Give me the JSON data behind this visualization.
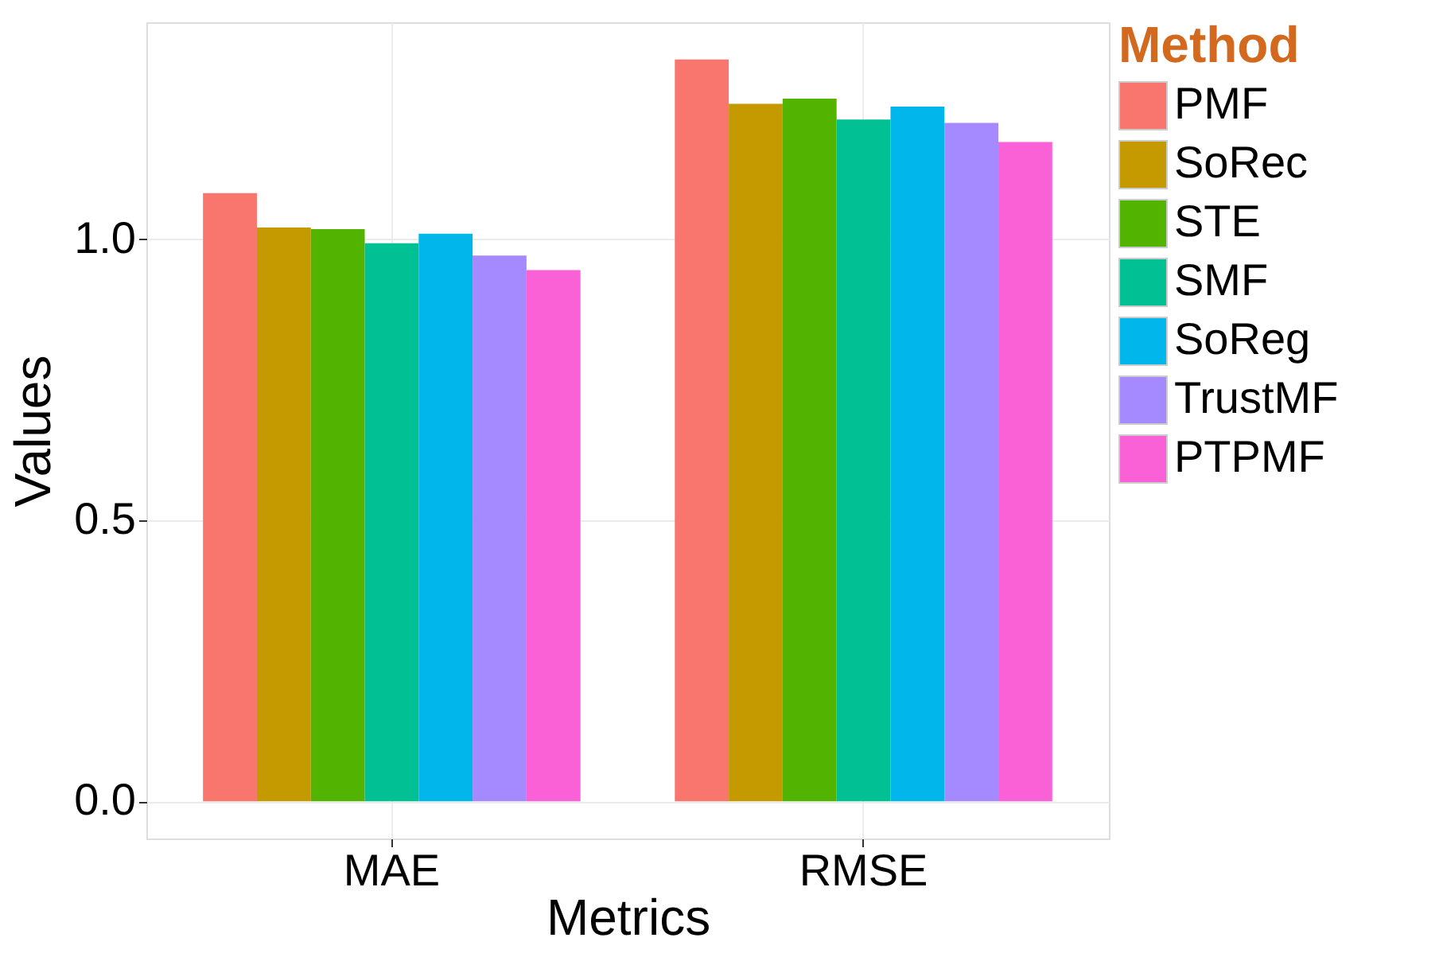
{
  "chart_data": {
    "type": "bar",
    "xlabel": "Metrics",
    "ylabel": "Values",
    "legend_title": "Method",
    "categories": [
      "MAE",
      "RMSE"
    ],
    "series": [
      {
        "name": "PMF",
        "color": "#f8766d",
        "values": [
          1.082,
          1.32
        ]
      },
      {
        "name": "SoRec",
        "color": "#c49a00",
        "values": [
          1.021,
          1.241
        ]
      },
      {
        "name": "STE",
        "color": "#53b400",
        "values": [
          1.018,
          1.25
        ]
      },
      {
        "name": "SMF",
        "color": "#00c094",
        "values": [
          0.993,
          1.213
        ]
      },
      {
        "name": "SoReg",
        "color": "#00b6eb",
        "values": [
          1.01,
          1.236
        ]
      },
      {
        "name": "TrustMF",
        "color": "#a58aff",
        "values": [
          0.971,
          1.207
        ]
      },
      {
        "name": "PTPMF",
        "color": "#fb61d7",
        "values": [
          0.945,
          1.173
        ]
      }
    ],
    "ylim": [
      -0.066,
      1.386
    ],
    "yticks": [
      {
        "value": 0,
        "label": "0.0"
      },
      {
        "value": 0.5,
        "label": "0.5"
      },
      {
        "value": 1,
        "label": "1.0"
      }
    ],
    "grid": true,
    "legend": "right"
  }
}
